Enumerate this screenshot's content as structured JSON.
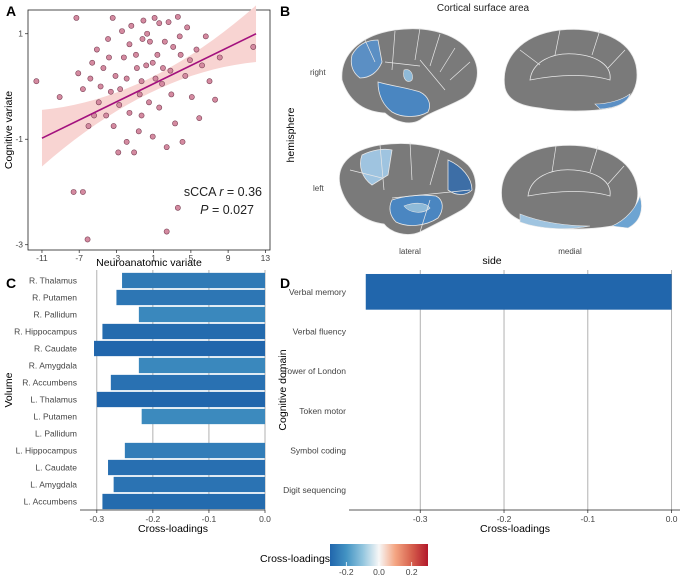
{
  "panel_letters": [
    "A",
    "B",
    "C",
    "D"
  ],
  "chart_data": [
    {
      "panel": "A",
      "type": "scatter",
      "xlabel": "Neuroanatomic variate",
      "ylabel": "Cognitive variate",
      "xticks": [
        -11,
        -7,
        -3,
        1,
        5,
        9,
        13
      ],
      "yticks": [
        1,
        -1,
        -3
      ],
      "xlim": [
        -12.5,
        13.5
      ],
      "ylim": [
        -3.1,
        1.45
      ],
      "fit_line": {
        "x": [
          -11,
          12
        ],
        "y": [
          -0.98,
          1.0
        ]
      },
      "annotation": {
        "stat_label": "sCCA ",
        "r_symbol": "r",
        "r_value": " = 0.36",
        "p_symbol": "P",
        "p_value": " = 0.027"
      },
      "points": [
        [
          -7.1,
          0.25
        ],
        [
          -6.6,
          -0.05
        ],
        [
          -5.6,
          0.45
        ],
        [
          -4.9,
          -0.3
        ],
        [
          -4.4,
          0.35
        ],
        [
          -6.0,
          -0.75
        ],
        [
          -5.4,
          -0.55
        ],
        [
          -3.6,
          -0.1
        ],
        [
          -3.1,
          0.2
        ],
        [
          -2.7,
          -0.35
        ],
        [
          -2.2,
          0.55
        ],
        [
          -1.6,
          -0.5
        ],
        [
          -0.9,
          0.6
        ],
        [
          -0.3,
          0.1
        ],
        [
          0.3,
          1.0
        ],
        [
          0.9,
          0.45
        ],
        [
          1.6,
          -0.4
        ],
        [
          2.2,
          0.85
        ],
        [
          2.8,
          0.3
        ],
        [
          3.3,
          -0.7
        ],
        [
          3.9,
          0.6
        ],
        [
          4.4,
          0.2
        ],
        [
          5.1,
          -0.2
        ],
        [
          5.6,
          0.7
        ],
        [
          6.2,
          0.4
        ],
        [
          7.0,
          0.1
        ],
        [
          -1.4,
          1.15
        ],
        [
          -0.1,
          1.25
        ],
        [
          1.1,
          1.3
        ],
        [
          2.6,
          1.22
        ],
        [
          3.6,
          1.32
        ],
        [
          4.6,
          1.12
        ],
        [
          -3.9,
          0.9
        ],
        [
          -2.4,
          1.05
        ],
        [
          0.6,
          0.85
        ],
        [
          1.9,
          0.05
        ],
        [
          -4.7,
          0.0
        ],
        [
          -3.3,
          -0.75
        ],
        [
          -1.9,
          -1.05
        ],
        [
          -0.6,
          -0.85
        ],
        [
          0.9,
          -0.95
        ],
        [
          2.4,
          -1.15
        ],
        [
          4.1,
          -1.05
        ],
        [
          -2.8,
          -1.25
        ],
        [
          -1.1,
          -1.25
        ],
        [
          -6.6,
          -2.0
        ],
        [
          -7.6,
          -2.0
        ],
        [
          -6.1,
          -2.9
        ],
        [
          2.4,
          -2.75
        ],
        [
          3.6,
          -2.3
        ],
        [
          11.7,
          0.75
        ],
        [
          8.1,
          0.55
        ],
        [
          7.6,
          -0.25
        ],
        [
          6.6,
          0.95
        ],
        [
          -9.1,
          -0.2
        ],
        [
          -11.6,
          0.1
        ],
        [
          -0.3,
          -0.55
        ],
        [
          -1.9,
          0.15
        ],
        [
          0.2,
          0.4
        ],
        [
          1.4,
          0.6
        ],
        [
          2.9,
          -0.15
        ],
        [
          -4.1,
          -0.55
        ],
        [
          -5.1,
          0.7
        ],
        [
          -2.6,
          -0.05
        ],
        [
          3.1,
          0.75
        ],
        [
          -0.8,
          0.35
        ],
        [
          4.9,
          0.5
        ],
        [
          5.9,
          -0.6
        ],
        [
          -3.4,
          1.3
        ],
        [
          1.6,
          1.2
        ],
        [
          -7.3,
          1.3
        ],
        [
          -0.5,
          -0.15
        ],
        [
          0.5,
          -0.3
        ],
        [
          2.0,
          0.35
        ],
        [
          -1.6,
          0.8
        ],
        [
          3.8,
          0.95
        ],
        [
          -5.8,
          0.15
        ],
        [
          -3.8,
          0.55
        ],
        [
          -0.2,
          0.9
        ],
        [
          1.2,
          0.15
        ]
      ]
    },
    {
      "panel": "B",
      "type": "brain-map",
      "title": "Cortical surface area",
      "row_label": "hemisphere",
      "rows": [
        "right",
        "left"
      ],
      "col_label": "side",
      "cols": [
        "lateral",
        "medial"
      ]
    },
    {
      "panel": "C",
      "type": "bar",
      "orientation": "horizontal",
      "xlabel": "Cross-loadings",
      "ylabel": "Volume",
      "xlim": [
        -0.33,
        0.0
      ],
      "xticks": [
        -0.3,
        -0.2,
        -0.1,
        0.0
      ],
      "xtick_labels": [
        "-0.3",
        "-0.2",
        "-0.1",
        "0.0"
      ],
      "categories": [
        "R. Thalamus",
        "R. Putamen",
        "R. Pallidum",
        "R. Hippocampus",
        "R. Caudate",
        "R. Amygdala",
        "R. Accumbens",
        "L. Thalamus",
        "L. Putamen",
        "L. Pallidum",
        "L. Hippocampus",
        "L. Caudate",
        "L. Amygdala",
        "L. Accumbens"
      ],
      "values": [
        -0.255,
        -0.265,
        -0.225,
        -0.29,
        -0.305,
        -0.225,
        -0.275,
        -0.3,
        -0.22,
        0.0,
        -0.25,
        -0.28,
        -0.27,
        -0.29
      ]
    },
    {
      "panel": "D",
      "type": "bar",
      "orientation": "horizontal",
      "xlabel": "Cross-loadings",
      "ylabel": "Cognitive domain",
      "xlim": [
        -0.385,
        0.01
      ],
      "xticks": [
        -0.3,
        -0.2,
        -0.1,
        0.0
      ],
      "xtick_labels": [
        "-0.3",
        "-0.2",
        "-0.1",
        "0.0"
      ],
      "categories": [
        "Verbal memory",
        "Verbal fluency",
        "Tower of London",
        "Token motor",
        "Symbol coding",
        "Digit sequencing"
      ],
      "values": [
        -0.365,
        0.0,
        0.0,
        0.0,
        0.0,
        0.0
      ]
    }
  ],
  "legend": {
    "title": "Cross-loadings",
    "range": [
      -0.3,
      0.3
    ],
    "ticks": [
      -0.2,
      0.0,
      0.2
    ],
    "tick_labels": [
      "-0.2",
      "0.0",
      "0.2"
    ],
    "colors": [
      "#2166ac",
      "#4393c3",
      "#92c5de",
      "#f7f7f7",
      "#f4a582",
      "#d6604d",
      "#b2182b"
    ]
  },
  "colors": {
    "point_fill": "#d48aa0",
    "point_stroke": "#7a4055",
    "fit_line": "#a3117e",
    "ci_band": "#f8d4d2",
    "brain_base": "#7a7a7a",
    "grid": "#9e9e9e"
  }
}
